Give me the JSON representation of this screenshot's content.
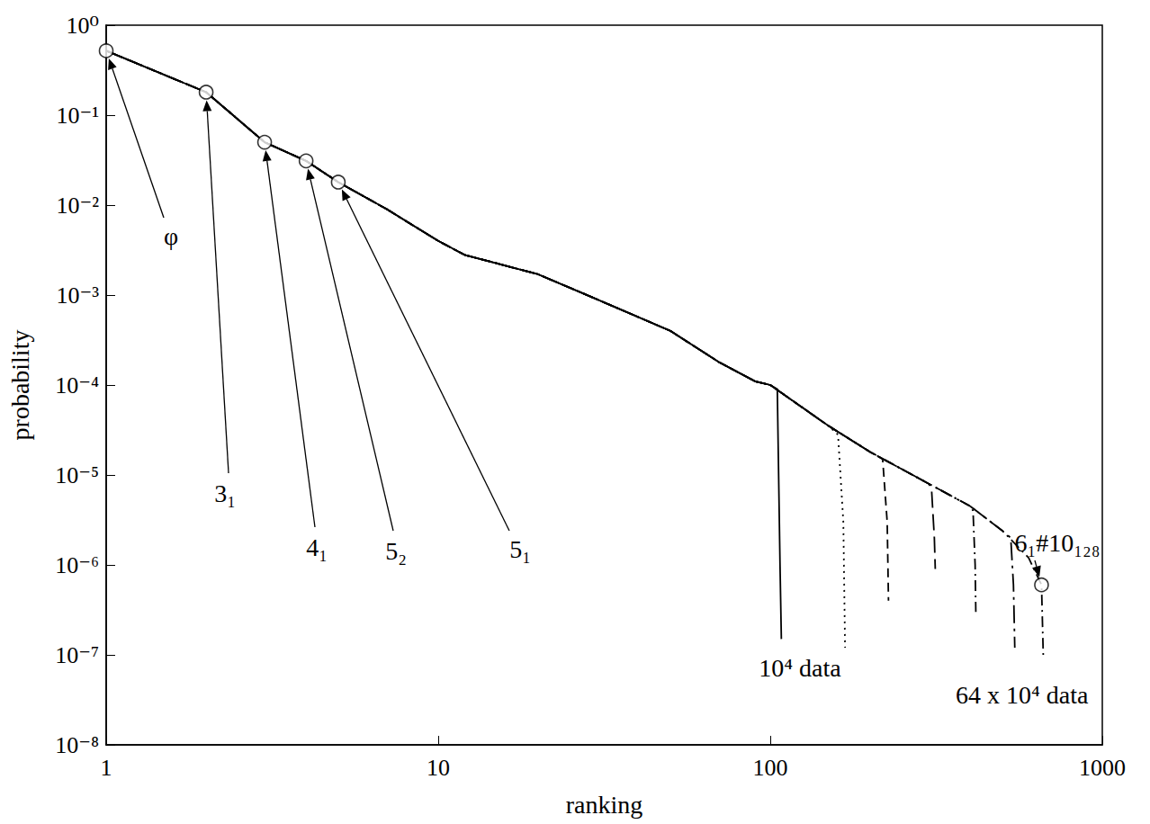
{
  "chart_data": {
    "type": "line",
    "log": true,
    "grid": false,
    "xlabel": "ranking",
    "ylabel": "probability",
    "xlim": [
      1,
      1000
    ],
    "xticks": [
      1,
      10,
      100,
      1000
    ],
    "ylim": [
      1e-08,
      1
    ],
    "yticks": [
      {
        "value": 1e-08,
        "label": "10⁻⁸"
      },
      {
        "value": 1e-07,
        "label": "10⁻⁷"
      },
      {
        "value": 1e-06,
        "label": "10⁻⁶"
      },
      {
        "value": 1e-05,
        "label": "10⁻⁵"
      },
      {
        "value": 0.0001,
        "label": "10⁻⁴"
      },
      {
        "value": 0.001,
        "label": "10⁻³"
      },
      {
        "value": 0.01,
        "label": "10⁻²"
      },
      {
        "value": 0.1,
        "label": "10⁻¹"
      },
      {
        "value": 1,
        "label": "10⁰"
      }
    ],
    "series": [
      {
        "name": "10⁴ data",
        "color": "#000000",
        "line_style": "solid",
        "x": [
          1,
          2,
          3,
          4,
          5,
          7,
          10,
          12,
          20,
          30,
          50,
          70,
          90,
          100,
          105,
          107,
          108
        ],
        "values": [
          0.52,
          0.18,
          0.05,
          0.031,
          0.018,
          0.009,
          0.004,
          0.0028,
          0.0017,
          0.0009,
          0.0004,
          0.00018,
          0.00011,
          0.0001,
          9e-05,
          1e-06,
          1.5e-07
        ]
      },
      {
        "color": "#000000",
        "line_style": "dotted",
        "x": [
          1,
          2,
          3,
          4,
          5,
          7,
          10,
          12,
          20,
          30,
          50,
          70,
          90,
          100,
          150,
          160,
          166,
          168
        ],
        "values": [
          0.52,
          0.18,
          0.05,
          0.031,
          0.018,
          0.009,
          0.004,
          0.0028,
          0.0017,
          0.0009,
          0.0004,
          0.00018,
          0.00011,
          0.0001,
          3.5e-05,
          2.8e-05,
          3e-06,
          1.2e-07
        ]
      },
      {
        "color": "#000000",
        "line_style": "dashed",
        "x": [
          1,
          2,
          3,
          4,
          5,
          7,
          10,
          12,
          20,
          30,
          50,
          70,
          90,
          100,
          150,
          200,
          218,
          225,
          227
        ],
        "values": [
          0.52,
          0.18,
          0.05,
          0.031,
          0.018,
          0.009,
          0.004,
          0.0028,
          0.0017,
          0.0009,
          0.0004,
          0.00018,
          0.00011,
          0.0001,
          3.5e-05,
          1.8e-05,
          1.5e-05,
          3e-06,
          4e-07
        ]
      },
      {
        "color": "#000000",
        "line_style": "longdash",
        "x": [
          1,
          2,
          3,
          4,
          5,
          7,
          10,
          12,
          20,
          30,
          50,
          70,
          90,
          100,
          150,
          200,
          300,
          306,
          312,
          314
        ],
        "values": [
          0.52,
          0.18,
          0.05,
          0.031,
          0.018,
          0.009,
          0.004,
          0.0028,
          0.0017,
          0.0009,
          0.0004,
          0.00018,
          0.00011,
          0.0001,
          3.5e-05,
          1.8e-05,
          8e-06,
          7e-06,
          2e-06,
          9e-07
        ]
      },
      {
        "color": "#000000",
        "line_style": "dashdot",
        "x": [
          1,
          2,
          3,
          4,
          5,
          7,
          10,
          12,
          20,
          30,
          50,
          70,
          90,
          100,
          150,
          200,
          300,
          400,
          408,
          414,
          416
        ],
        "values": [
          0.52,
          0.18,
          0.05,
          0.031,
          0.018,
          0.009,
          0.004,
          0.0028,
          0.0017,
          0.0009,
          0.0004,
          0.00018,
          0.00011,
          0.0001,
          3.5e-05,
          1.8e-05,
          8e-06,
          4.5e-06,
          4e-06,
          1e-06,
          3e-07
        ]
      },
      {
        "color": "#000000",
        "line_style": "longdashdot",
        "x": [
          1,
          2,
          3,
          4,
          5,
          7,
          10,
          12,
          20,
          30,
          50,
          70,
          90,
          100,
          150,
          200,
          300,
          400,
          500,
          530,
          540,
          545
        ],
        "values": [
          0.52,
          0.18,
          0.05,
          0.031,
          0.018,
          0.009,
          0.004,
          0.0028,
          0.0017,
          0.0009,
          0.0004,
          0.00018,
          0.00011,
          0.0001,
          3.5e-05,
          1.8e-05,
          8e-06,
          4.5e-06,
          2.4e-06,
          2e-06,
          6e-07,
          1.2e-07
        ]
      },
      {
        "name": "64 x 10⁴ data",
        "color": "#000000",
        "line_style": "dashdot",
        "x": [
          1,
          2,
          3,
          4,
          5,
          7,
          10,
          12,
          20,
          30,
          50,
          70,
          90,
          100,
          150,
          200,
          300,
          400,
          500,
          600,
          656,
          664
        ],
        "values": [
          0.52,
          0.18,
          0.05,
          0.031,
          0.018,
          0.009,
          0.004,
          0.0028,
          0.0017,
          0.0009,
          0.0004,
          0.00018,
          0.00011,
          0.0001,
          3.5e-05,
          1.8e-05,
          8e-06,
          4.5e-06,
          2.4e-06,
          1.2e-06,
          6e-07,
          1e-07
        ]
      },
      {
        "type": "scatter",
        "marker": "circle",
        "color": "#000000",
        "x": [
          1,
          2,
          3,
          4,
          5,
          656
        ],
        "values": [
          0.52,
          0.18,
          0.05,
          0.031,
          0.018,
          6e-07
        ]
      }
    ],
    "annotations": [
      {
        "text": "φ",
        "x": 1,
        "y": 0.52
      },
      {
        "text": "3₁",
        "x": 2,
        "y": 0.18
      },
      {
        "text": "4₁",
        "x": 3,
        "y": 0.05
      },
      {
        "text": "5₂",
        "x": 4,
        "y": 0.031
      },
      {
        "text": "5₁",
        "x": 5,
        "y": 0.018
      },
      {
        "text": "6₁#10₁₂₈",
        "x": 656,
        "y": 6e-07
      }
    ]
  }
}
